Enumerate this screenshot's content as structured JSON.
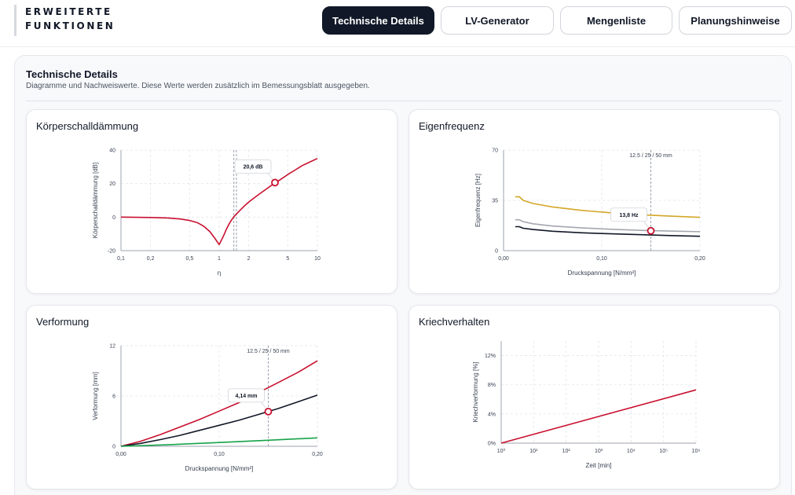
{
  "header": {
    "brand_line1": "ERWEITERTE",
    "brand_line2": "FUNKTIONEN",
    "tabs": [
      {
        "label": "Technische Details",
        "active": true
      },
      {
        "label": "LV-Generator",
        "active": false
      },
      {
        "label": "Mengenliste",
        "active": false
      },
      {
        "label": "Planungshinweise",
        "active": false
      }
    ]
  },
  "section": {
    "title": "Technische Details",
    "subtitle": "Diagramme und Nachweiswerte. Diese Werte werden zusätzlich im Bemessungsblatt ausgegeben."
  },
  "colors": {
    "accent": "#c8102e",
    "dark": "#111827",
    "amber": "#d4a628",
    "gray": "#a3a7ae",
    "green": "#16a34a"
  },
  "chart_data": [
    {
      "id": "koerperschall",
      "title": "Körperschalldämmung",
      "type": "line",
      "xlabel": "η",
      "ylabel": "Körperschalldämmung [dB]",
      "xscale": "log",
      "xlim": [
        0.1,
        10
      ],
      "ylim": [
        -20,
        40
      ],
      "xticks": [
        {
          "v": 0.1,
          "l": "0,1"
        },
        {
          "v": 0.2,
          "l": "0,2"
        },
        {
          "v": 0.5,
          "l": "0,5"
        },
        {
          "v": 1,
          "l": "1"
        },
        {
          "v": 2,
          "l": "2"
        },
        {
          "v": 5,
          "l": "5"
        },
        {
          "v": 10,
          "l": "10"
        }
      ],
      "yticks": [
        {
          "v": -20,
          "l": "-20"
        },
        {
          "v": 0,
          "l": "0"
        },
        {
          "v": 20,
          "l": "20"
        },
        {
          "v": 40,
          "l": "40"
        }
      ],
      "series": [
        {
          "color": "#c8102e",
          "x": [
            0.1,
            0.2,
            0.3,
            0.4,
            0.5,
            0.6,
            0.7,
            0.8,
            0.9,
            1.0,
            1.1,
            1.2,
            1.3,
            1.4,
            1.6,
            1.8,
            2.0,
            2.5,
            3.0,
            3.5,
            4.0,
            5.0,
            6.0,
            7.0,
            8.0,
            10.0
          ],
          "y": [
            0,
            -0.2,
            -0.5,
            -1.1,
            -2,
            -3.3,
            -5.5,
            -8.5,
            -12.5,
            -16.4,
            -11.5,
            -6.5,
            -2.8,
            0,
            3.6,
            6.6,
            9,
            13.3,
            16.6,
            19.4,
            21.6,
            25.4,
            28.3,
            30.7,
            32.3,
            35
          ]
        }
      ],
      "vlines": [
        {
          "x": 1.41
        },
        {
          "x": 1.5
        }
      ],
      "marker": {
        "x": 3.7,
        "y": 20.6,
        "label": "20,6 dB"
      }
    },
    {
      "id": "eigenfrequenz",
      "title": "Eigenfrequenz",
      "type": "line",
      "xlabel": "Druckspannung [N/mm²]",
      "ylabel": "Eigenfrequenz [Hz]",
      "xlim": [
        0,
        0.2
      ],
      "ylim": [
        0,
        70
      ],
      "xticks": [
        {
          "v": 0,
          "l": "0,00"
        },
        {
          "v": 0.1,
          "l": "0,10"
        },
        {
          "v": 0.2,
          "l": "0,20"
        }
      ],
      "yticks": [
        {
          "v": 0,
          "l": "0"
        },
        {
          "v": 35,
          "l": "35"
        },
        {
          "v": 70,
          "l": "70"
        }
      ],
      "series": [
        {
          "color": "#d4a628",
          "x": [
            0.012,
            0.016,
            0.02,
            0.03,
            0.05,
            0.08,
            0.11,
            0.14,
            0.17,
            0.2
          ],
          "y": [
            37.5,
            37.5,
            35,
            32.8,
            30.4,
            28,
            26.3,
            25,
            24,
            23.2
          ]
        },
        {
          "color": "#a3a7ae",
          "x": [
            0.012,
            0.016,
            0.02,
            0.03,
            0.05,
            0.08,
            0.11,
            0.14,
            0.17,
            0.2
          ],
          "y": [
            21.5,
            21.5,
            20.2,
            18.7,
            17.1,
            15.8,
            14.9,
            14.1,
            13.6,
            13.2
          ]
        },
        {
          "color": "#111827",
          "x": [
            0.012,
            0.016,
            0.02,
            0.03,
            0.05,
            0.08,
            0.11,
            0.14,
            0.17,
            0.2
          ],
          "y": [
            16.7,
            16.7,
            15.6,
            14.7,
            13.5,
            12.4,
            11.7,
            11.1,
            10.5,
            10
          ]
        }
      ],
      "vlines": [
        {
          "x": 0.15,
          "label": "12.5 / 25 / 50 mm"
        }
      ],
      "marker": {
        "x": 0.15,
        "y": 13.8,
        "label": "13,8 Hz"
      }
    },
    {
      "id": "verformung",
      "title": "Verformung",
      "type": "line",
      "xlabel": "Druckspannung [N/mm²]",
      "ylabel": "Verformung [mm]",
      "xlim": [
        0,
        0.2
      ],
      "ylim": [
        0,
        12
      ],
      "xticks": [
        {
          "v": 0,
          "l": "0,00"
        },
        {
          "v": 0.1,
          "l": "0,10"
        },
        {
          "v": 0.2,
          "l": "0,20"
        }
      ],
      "yticks": [
        {
          "v": 0,
          "l": "0"
        },
        {
          "v": 6,
          "l": "6"
        },
        {
          "v": 12,
          "l": "12"
        }
      ],
      "series": [
        {
          "color": "#c8102e",
          "x": [
            0,
            0.02,
            0.04,
            0.06,
            0.08,
            0.1,
            0.12,
            0.14,
            0.16,
            0.18,
            0.2
          ],
          "y": [
            0,
            0.6,
            1.4,
            2.3,
            3.2,
            4.2,
            5.2,
            6.4,
            7.6,
            8.8,
            10.2
          ]
        },
        {
          "color": "#111827",
          "x": [
            0,
            0.02,
            0.04,
            0.06,
            0.08,
            0.1,
            0.12,
            0.14,
            0.16,
            0.18,
            0.2
          ],
          "y": [
            0,
            0.35,
            0.8,
            1.3,
            1.9,
            2.5,
            3.1,
            3.8,
            4.5,
            5.3,
            6.1
          ]
        },
        {
          "color": "#16a34a",
          "x": [
            0,
            0.05,
            0.1,
            0.15,
            0.2
          ],
          "y": [
            0,
            0.2,
            0.45,
            0.72,
            1.0
          ]
        }
      ],
      "vlines": [
        {
          "x": 0.15,
          "label": "12.5 / 25 / 50 mm"
        }
      ],
      "marker": {
        "x": 0.15,
        "y": 4.14,
        "label": "4,14 mm"
      }
    },
    {
      "id": "kriechverhalten",
      "title": "Kriechverhalten",
      "type": "line",
      "xlabel": "Zeit [min]",
      "ylabel": "Kriechverformung [%]",
      "xscale": "log",
      "xlim": [
        1,
        1000000
      ],
      "ylim": [
        0,
        14
      ],
      "xticks": [
        {
          "v": 1,
          "l": "10⁰"
        },
        {
          "v": 10,
          "l": "10¹"
        },
        {
          "v": 100,
          "l": "10²"
        },
        {
          "v": 1000,
          "l": "10³"
        },
        {
          "v": 10000,
          "l": "10⁴"
        },
        {
          "v": 100000,
          "l": "10⁵"
        },
        {
          "v": 1000000,
          "l": "10⁶"
        }
      ],
      "yticks": [
        {
          "v": 0,
          "l": "0%"
        },
        {
          "v": 4,
          "l": "4%"
        },
        {
          "v": 8,
          "l": "8%"
        },
        {
          "v": 12,
          "l": "12%"
        }
      ],
      "series": [
        {
          "color": "#c8102e",
          "x": [
            1,
            1000000
          ],
          "y": [
            0,
            7.3
          ]
        }
      ]
    }
  ]
}
